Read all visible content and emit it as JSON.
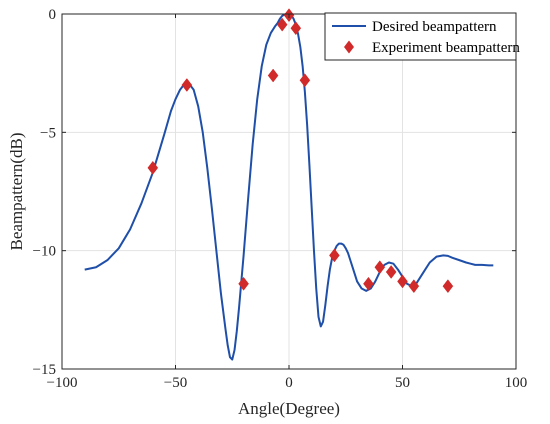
{
  "chart_data": {
    "type": "line",
    "xlabel": "Angle(Degree)",
    "ylabel": "Beampattern(dB)",
    "xlim": [
      -100,
      100
    ],
    "ylim": [
      -15,
      0
    ],
    "xticks": [
      -100,
      -50,
      0,
      50,
      100
    ],
    "yticks": [
      0,
      -5,
      -10,
      -15
    ],
    "xtick_labels": [
      "−100",
      "−50",
      "0",
      "50",
      "100"
    ],
    "ytick_labels": [
      "0",
      "−5",
      "−10",
      "−15"
    ],
    "grid": true,
    "legend_position": "top-right",
    "series": [
      {
        "name": "Desired beampattern",
        "style": "line",
        "color": "#1f4fa8",
        "x": [
          -90,
          -85,
          -80,
          -75,
          -70,
          -65,
          -60,
          -55,
          -52,
          -50,
          -48,
          -46,
          -45,
          -44,
          -42,
          -40,
          -38,
          -36,
          -34,
          -32,
          -30,
          -28,
          -27,
          -26,
          -25,
          -24,
          -23,
          -22,
          -20,
          -18,
          -16,
          -14,
          -12,
          -10,
          -8,
          -6,
          -5,
          -4,
          -3,
          -2,
          -1,
          0,
          1,
          2,
          3,
          4,
          5,
          6,
          7,
          8,
          9,
          10,
          11,
          12,
          13,
          14,
          15,
          16,
          17,
          18,
          19,
          20,
          21,
          22,
          23,
          24,
          25,
          26,
          27,
          28,
          29,
          30,
          32,
          34,
          36,
          38,
          40,
          42,
          44,
          46,
          48,
          50,
          52,
          54,
          56,
          58,
          60,
          62,
          65,
          68,
          70,
          72,
          75,
          78,
          80,
          82,
          85,
          88,
          90
        ],
        "y": [
          -10.8,
          -10.7,
          -10.4,
          -9.9,
          -9.1,
          -8.0,
          -6.7,
          -5.1,
          -4.1,
          -3.6,
          -3.2,
          -2.95,
          -2.9,
          -2.95,
          -3.2,
          -3.9,
          -5.0,
          -6.5,
          -8.2,
          -10.0,
          -11.8,
          -13.3,
          -14.0,
          -14.5,
          -14.6,
          -14.2,
          -13.4,
          -12.4,
          -10.2,
          -7.8,
          -5.5,
          -3.6,
          -2.2,
          -1.3,
          -0.8,
          -0.5,
          -0.38,
          -0.2,
          -0.08,
          -0.02,
          0.0,
          0.0,
          -0.05,
          -0.2,
          -0.45,
          -0.85,
          -1.4,
          -2.2,
          -3.3,
          -4.7,
          -6.4,
          -8.2,
          -10.0,
          -11.6,
          -12.8,
          -13.2,
          -13.0,
          -12.3,
          -11.5,
          -10.8,
          -10.3,
          -10.0,
          -9.8,
          -9.7,
          -9.7,
          -9.75,
          -9.9,
          -10.1,
          -10.4,
          -10.7,
          -11.0,
          -11.3,
          -11.6,
          -11.7,
          -11.6,
          -11.3,
          -10.9,
          -10.6,
          -10.5,
          -10.55,
          -10.8,
          -11.1,
          -11.4,
          -11.5,
          -11.4,
          -11.1,
          -10.8,
          -10.5,
          -10.25,
          -10.2,
          -10.22,
          -10.3,
          -10.4,
          -10.5,
          -10.55,
          -10.6,
          -10.6,
          -10.62,
          -10.62
        ]
      },
      {
        "name": "Experiment beampattern",
        "style": "markers",
        "marker": "diamond",
        "color": "#d12a2a",
        "x": [
          -60,
          -45,
          -20,
          -7,
          -3,
          0,
          3,
          7,
          20,
          35,
          40,
          45,
          50,
          55,
          70
        ],
        "y": [
          -6.5,
          -3.0,
          -11.4,
          -2.6,
          -0.45,
          -0.05,
          -0.6,
          -2.8,
          -10.2,
          -11.4,
          -10.7,
          -10.9,
          -11.3,
          -11.5,
          -11.5
        ]
      }
    ]
  }
}
